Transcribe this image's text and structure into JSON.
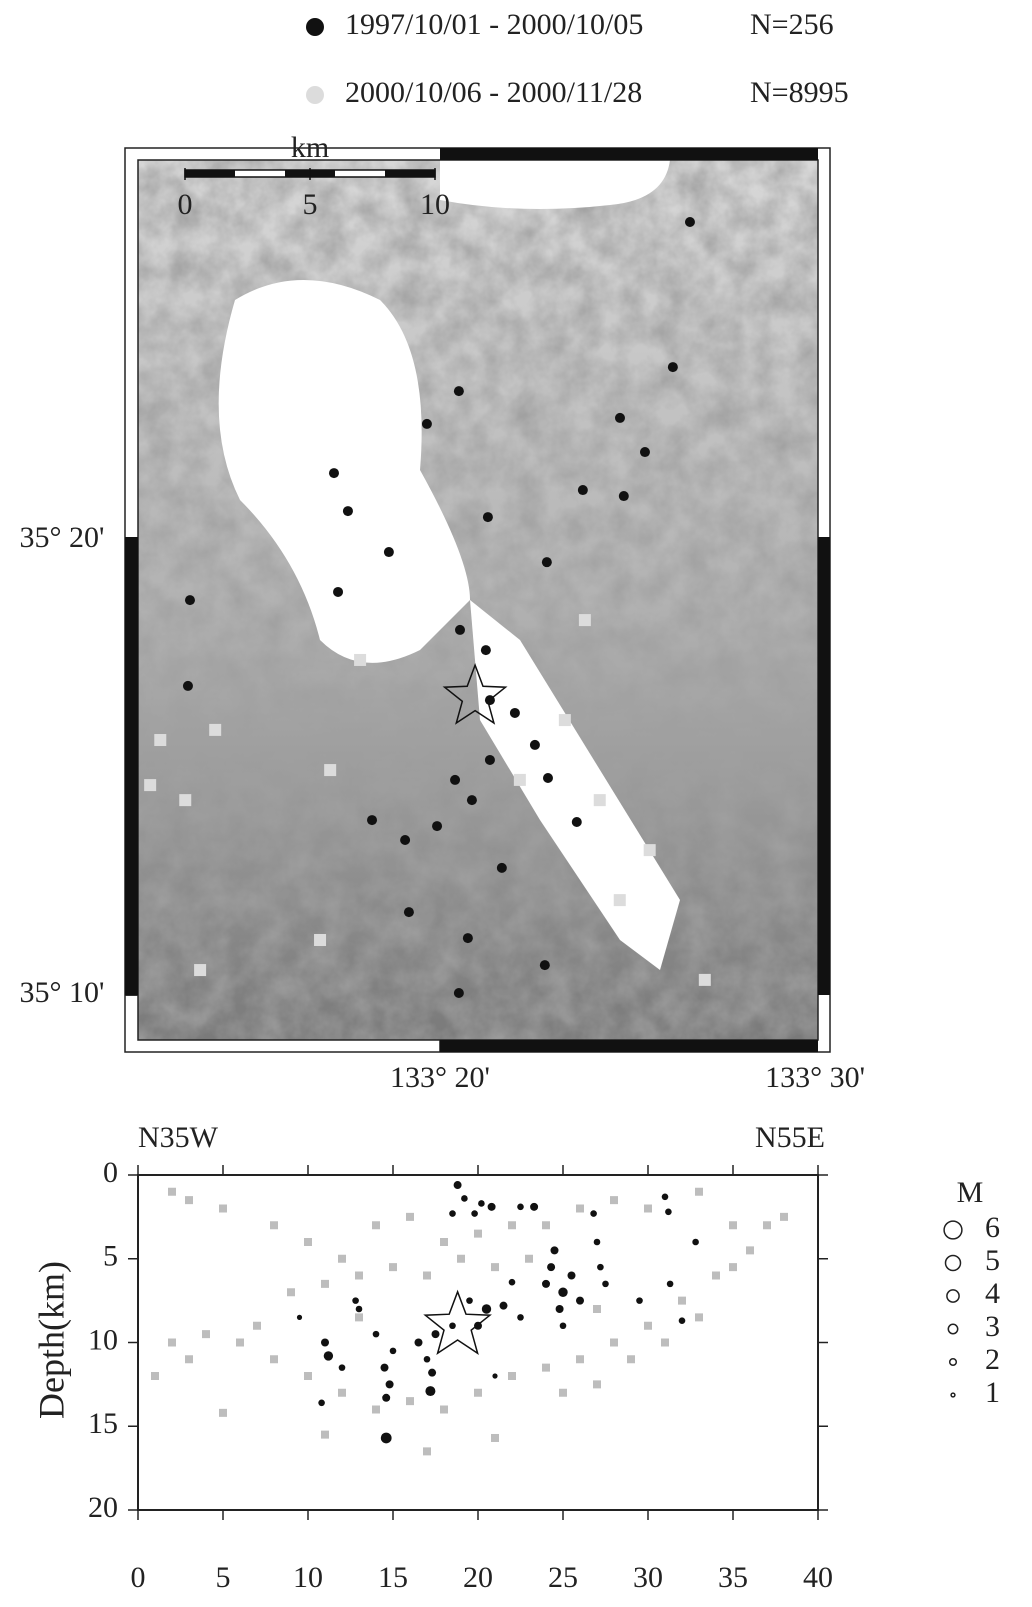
{
  "chart_data": [
    {
      "type": "map",
      "series": [
        {
          "name": "1997/10/01 - 2000/10/05",
          "n_label": "N=256",
          "color": "#111111",
          "x": [
            133.4444,
            133.4368,
            133.3417,
            133.3275,
            133.4244,
            133.4133,
            133.2862,
            133.2924,
            133.3106,
            133.415,
            133.3968,
            133.3546,
            133.3808,
            133.288,
            133.2222,
            133.2213,
            133.3537,
            133.3422,
            133.3555,
            133.3666,
            133.3755,
            133.3813,
            133.3555,
            133.3941,
            133.3178,
            133.3031,
            133.332,
            133.3608,
            133.3195,
            133.3457,
            133.3417,
            133.3799,
            133.3475,
            133.34
          ],
          "values": [
            35.4497,
            35.3966,
            35.3878,
            35.3758,
            35.3655,
            35.378,
            35.3578,
            35.3439,
            35.3289,
            35.3494,
            35.3516,
            35.3417,
            35.3252,
            35.3143,
            35.3113,
            35.2799,
            35.293,
            35.3004,
            35.2747,
            35.27,
            35.2583,
            35.2462,
            35.2528,
            35.2301,
            35.2235,
            35.2308,
            35.2286,
            35.2133,
            35.1971,
            35.1876,
            35.1675,
            35.1777,
            35.2381,
            35.2455
          ]
        },
        {
          "name": "2000/10/06 - 2000/11/28",
          "n_label": "N=8995",
          "color": "#dcdcdc",
          "x": [
            133.209,
            133.2201,
            133.28,
            133.2267,
            133.451,
            133.2045,
            133.2845,
            133.2334,
            133.3888,
            133.4043,
            133.4265,
            133.3688,
            133.4132,
            133.3977,
            133.2978
          ],
          "values": [
            35.2601,
            35.2381,
            35.1869,
            35.1759,
            35.1723,
            35.2436,
            35.2491,
            35.2638,
            35.2674,
            35.2381,
            35.2198,
            35.2455,
            35.2015,
            35.304,
            35.2894
          ]
        }
      ],
      "mainshock": {
        "x": 133.3489,
        "y": 35.2758
      },
      "xlim": [
        133.1991,
        133.5013
      ],
      "ylim": [
        35.1503,
        35.4724
      ],
      "xticks": [
        {
          "value": 133.3333,
          "label": "133° 20'"
        },
        {
          "value": 133.5,
          "label": "133° 30'"
        }
      ],
      "yticks": [
        {
          "value": 35.1667,
          "label": "35° 10'"
        },
        {
          "value": 35.3333,
          "label": "35° 20'"
        }
      ],
      "scale_bar": {
        "label": "km",
        "ticks": [
          0,
          5,
          10
        ]
      }
    },
    {
      "type": "scatter",
      "left_label": "N35W",
      "right_label": "N55E",
      "y_label": "Depth(km)",
      "series": [
        {
          "color": "#111111",
          "x": [
            18.8,
            19.2,
            20.2,
            20.8,
            22.5,
            23.3,
            19.8,
            18.5,
            26.8,
            31.0,
            31.2,
            32.8,
            24.5,
            24.3,
            25.5,
            24,
            25,
            26,
            24.8,
            27.2,
            27.5,
            27,
            29.5,
            31.3,
            32,
            22,
            21.5,
            20.5,
            22.5,
            20,
            19.5,
            18.5,
            17.5,
            16.5,
            17,
            17.2,
            17.3,
            15,
            14.5,
            14.8,
            14.6,
            14.6,
            11,
            11.2,
            10.8,
            12.8,
            13,
            14,
            12,
            9.5,
            21,
            25
          ],
          "values": [
            0.6,
            1.4,
            1.7,
            1.9,
            1.9,
            1.9,
            2.3,
            2.3,
            2.3,
            1.3,
            2.2,
            4.0,
            4.5,
            5.5,
            6,
            6.5,
            7,
            7.5,
            8,
            5.5,
            6.5,
            4,
            7.5,
            6.5,
            8.7,
            6.4,
            7.8,
            8,
            8.5,
            9,
            7.5,
            9,
            9.5,
            10,
            11,
            12.9,
            11.8,
            10.5,
            11.5,
            12.5,
            13.3,
            15.7,
            10,
            10.8,
            13.6,
            7.5,
            8,
            9.5,
            11.5,
            8.5,
            12,
            9
          ],
          "magnitudes": [
            2.5,
            2,
            2,
            2.5,
            2,
            2.5,
            2,
            2,
            2,
            2,
            2,
            2,
            2.5,
            2.5,
            2.5,
            2.5,
            3,
            2.5,
            2.5,
            2,
            2,
            2,
            2,
            2,
            2,
            2,
            2.5,
            3,
            2,
            2.5,
            2,
            2,
            2.5,
            2.5,
            2,
            3.2,
            2.5,
            2,
            2.5,
            2.5,
            2.5,
            3.5,
            2.5,
            3,
            2,
            2,
            2,
            2,
            2,
            1.5,
            1.5,
            2
          ]
        },
        {
          "color": "#bdbdbd",
          "x": [
            2,
            3,
            5,
            8,
            10,
            12,
            14,
            16,
            18,
            20,
            22,
            24,
            26,
            28,
            30,
            33,
            35,
            36,
            34,
            32,
            30,
            28,
            26,
            24,
            22,
            20,
            18,
            16,
            14,
            12,
            10,
            8,
            6,
            4,
            2,
            1,
            5,
            7,
            9,
            11,
            13,
            15,
            17,
            19,
            21,
            23,
            27,
            29,
            31,
            33,
            25,
            27,
            21,
            17,
            13,
            11,
            35,
            37,
            38,
            3
          ],
          "values": [
            1,
            1.5,
            2,
            3,
            4,
            5,
            3,
            2.5,
            4,
            3.5,
            3,
            3,
            2,
            1.5,
            2,
            1,
            3,
            4.5,
            6,
            7.5,
            9,
            10,
            11,
            11.5,
            12,
            13,
            14,
            13.5,
            14,
            13,
            12,
            11,
            10,
            9.5,
            10,
            12,
            14.2,
            9,
            7,
            6.5,
            6,
            5.5,
            6,
            5,
            5.5,
            5,
            8,
            11,
            10,
            8.5,
            13,
            12.5,
            15.7,
            16.5,
            8.5,
            15.5,
            5.5,
            3,
            2.5,
            11
          ]
        }
      ],
      "mainshock": {
        "x": 18.8,
        "y": 9.0
      },
      "xlim": [
        0,
        40
      ],
      "ylim": [
        0,
        20
      ],
      "xticks": [
        0,
        5,
        10,
        15,
        20,
        25,
        30,
        35,
        40
      ],
      "yticks": [
        0,
        5,
        10,
        15,
        20
      ],
      "magnitude_legend": {
        "title": "M",
        "values": [
          6,
          5,
          4,
          3,
          2,
          1
        ]
      }
    }
  ]
}
